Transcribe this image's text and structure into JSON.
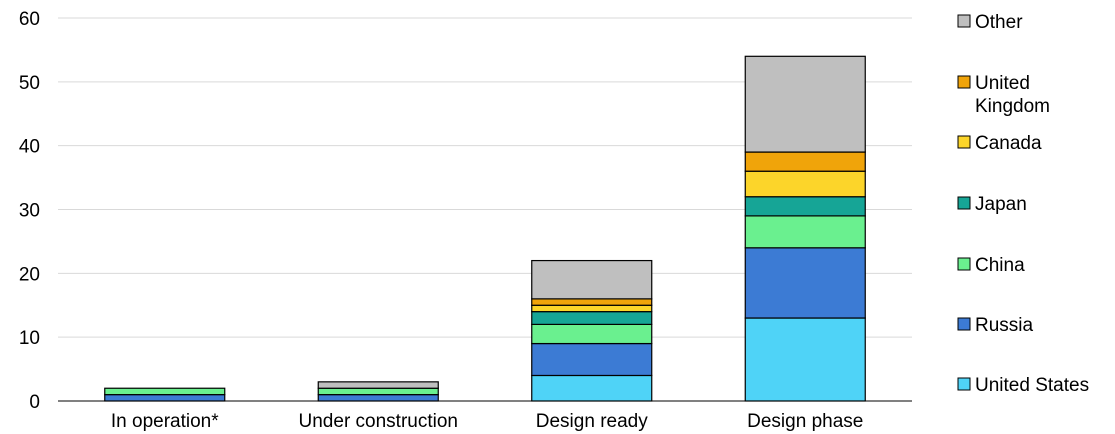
{
  "chart_data": {
    "type": "bar",
    "stacked": true,
    "categories": [
      "In operation*",
      "Under construction",
      "Design ready",
      "Design phase"
    ],
    "series": [
      {
        "name": "United States",
        "color": "#4fd3f7",
        "values": [
          0,
          0,
          4,
          13
        ]
      },
      {
        "name": "Russia",
        "color": "#3c7bd4",
        "values": [
          1,
          1,
          5,
          11
        ]
      },
      {
        "name": "China",
        "color": "#6af08f",
        "values": [
          1,
          1,
          3,
          5
        ]
      },
      {
        "name": "Japan",
        "color": "#16a596",
        "values": [
          0,
          0,
          2,
          3
        ]
      },
      {
        "name": "Canada",
        "color": "#fcd52a",
        "values": [
          0,
          0,
          1,
          4
        ]
      },
      {
        "name": "United Kingdom",
        "color": "#f0a40a",
        "values": [
          0,
          0,
          1,
          3
        ]
      },
      {
        "name": "Other",
        "color": "#bfbfbf",
        "values": [
          0,
          1,
          6,
          15
        ]
      }
    ],
    "yticks": [
      0,
      10,
      20,
      30,
      40,
      50,
      60
    ],
    "ylim": [
      0,
      60
    ],
    "grid": true,
    "legend_position": "right"
  }
}
